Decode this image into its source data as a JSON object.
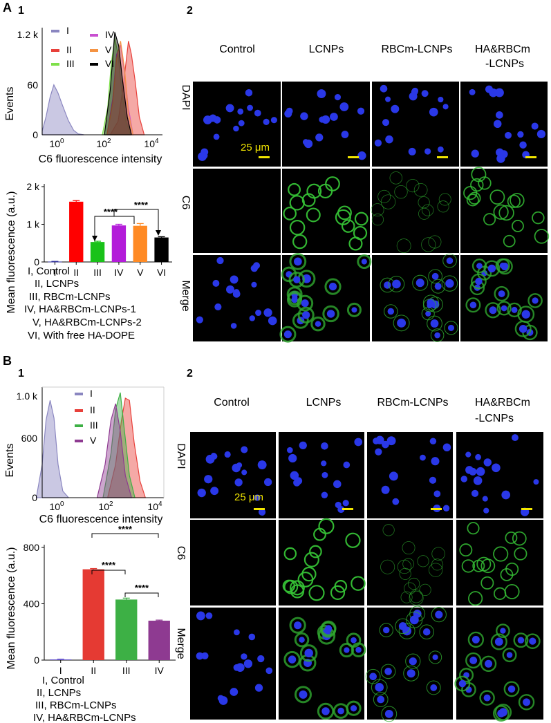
{
  "panel_A": {
    "label": "A",
    "sub1": "1",
    "sub2": "2",
    "histogram": {
      "ylabel": "Events",
      "xlabel": "C6 fluorescence intensity",
      "yticks": [
        "0",
        "60",
        "1.2 k"
      ],
      "xticks": [
        {
          "base": "10",
          "exp": "0"
        },
        {
          "base": "10",
          "exp": "2"
        },
        {
          "base": "10",
          "exp": "4"
        }
      ],
      "legend": [
        {
          "label": "I",
          "color": "#8a86c0"
        },
        {
          "label": "II",
          "color": "#e8403a"
        },
        {
          "label": "III",
          "color": "#7ee04a"
        },
        {
          "label": "IV",
          "color": "#c84fd0"
        },
        {
          "label": "V",
          "color": "#f59342"
        },
        {
          "label": "VI",
          "color": "#000000"
        }
      ]
    },
    "bar_legend": [
      "I, Control",
      "II, LCNPs",
      "III, RBCm-LCNPs",
      "IV, HA&RBCm-LCNPs-1",
      "V, HA&RBCm-LCNPs-2",
      "VI, With free HA-DOPE"
    ],
    "significance": [
      "****",
      "****"
    ],
    "micro": {
      "columns": [
        "Control",
        "LCNPs",
        "RBCm-LCNPs",
        "HA&RBCm",
        "-LCNPs"
      ],
      "rows": [
        "DAPI",
        "C6",
        "Merge"
      ],
      "scale_bar": "25 μm"
    }
  },
  "panel_B": {
    "label": "B",
    "sub1": "1",
    "sub2": "2",
    "histogram": {
      "ylabel": "Events",
      "xlabel": "C6 fluorescence intensity",
      "yticks": [
        "0",
        "600",
        "1.0 k"
      ],
      "xticks": [
        {
          "base": "10",
          "exp": "0"
        },
        {
          "base": "10",
          "exp": "2"
        },
        {
          "base": "10",
          "exp": "4"
        }
      ],
      "legend": [
        {
          "label": "I",
          "color": "#8a86c0"
        },
        {
          "label": "II",
          "color": "#e8403a"
        },
        {
          "label": "III",
          "color": "#3db045"
        },
        {
          "label": "V",
          "color": "#8e3a91"
        }
      ]
    },
    "bar_legend": [
      "I, Control",
      "II, LCNPs",
      "III, RBCm-LCNPs",
      "IV, HA&RBCm-LCNPs"
    ],
    "significance": [
      "****",
      "****",
      "****"
    ],
    "micro": {
      "columns": [
        "Control",
        "LCNPs",
        "RBCm-LCNPs",
        "HA&RBCm",
        "-LCNPs"
      ],
      "rows": [
        "DAPI",
        "C6",
        "Merge"
      ],
      "scale_bar": "25 μm"
    }
  },
  "chart_data": [
    {
      "type": "area",
      "panel": "A1",
      "xscale": "log",
      "xlabel": "C6 fluorescence intensity",
      "ylabel": "Events",
      "xlim": [
        0.5,
        20000
      ],
      "ylim": [
        0,
        1200
      ],
      "series": [
        {
          "name": "I",
          "color": "#8a86c0",
          "x": [
            0.5,
            0.7,
            1,
            1.4,
            2,
            3,
            5,
            8,
            12,
            20
          ],
          "y": [
            40,
            200,
            420,
            560,
            470,
            330,
            160,
            50,
            10,
            0
          ]
        },
        {
          "name": "II",
          "color": "#e8403a",
          "x": [
            200,
            400,
            600,
            800,
            1000,
            1300,
            1800,
            2600,
            4000
          ],
          "y": [
            0,
            150,
            500,
            800,
            1050,
            900,
            600,
            200,
            0
          ]
        },
        {
          "name": "III",
          "color": "#7ee04a",
          "x": [
            100,
            160,
            220,
            300,
            400,
            550,
            800,
            1200
          ],
          "y": [
            0,
            300,
            800,
            1080,
            900,
            500,
            150,
            0
          ]
        },
        {
          "name": "IV",
          "color": "#c84fd0",
          "x": [
            150,
            250,
            350,
            500,
            700,
            1000,
            1500
          ],
          "y": [
            0,
            400,
            900,
            1000,
            700,
            300,
            0
          ]
        },
        {
          "name": "V",
          "color": "#f59342",
          "x": [
            150,
            250,
            350,
            500,
            700,
            1000,
            1500
          ],
          "y": [
            0,
            350,
            850,
            1050,
            750,
            250,
            0
          ]
        },
        {
          "name": "VI",
          "color": "#000000",
          "x": [
            120,
            200,
            300,
            420,
            600,
            900,
            1300
          ],
          "y": [
            0,
            500,
            1150,
            1000,
            600,
            200,
            0
          ]
        }
      ]
    },
    {
      "type": "bar",
      "panel": "A1",
      "ylabel": "Mean fluorescence (a.u.)",
      "categories": [
        "I",
        "II",
        "III",
        "IV",
        "V",
        "VI"
      ],
      "values": [
        10,
        1600,
        530,
        970,
        960,
        650
      ],
      "errors": [
        5,
        30,
        20,
        30,
        60,
        20
      ],
      "colors": [
        "#2e2e9a",
        "#ff0000",
        "#19c219",
        "#b31cd9",
        "#ff8a24",
        "#000000"
      ],
      "ylim": [
        0,
        2000
      ],
      "yticks": [
        "0",
        "1 k",
        "2 k"
      ]
    },
    {
      "type": "area",
      "panel": "B1",
      "xscale": "log",
      "xlabel": "C6 fluorescence intensity",
      "ylabel": "Events",
      "xlim": [
        0.5,
        20000
      ],
      "ylim": [
        0,
        1000
      ],
      "series": [
        {
          "name": "I",
          "color": "#8a86c0",
          "x": [
            0.3,
            0.5,
            0.7,
            1,
            1.4,
            2,
            3,
            5
          ],
          "y": [
            0,
            300,
            700,
            880,
            720,
            300,
            60,
            0
          ]
        },
        {
          "name": "II",
          "color": "#e8403a",
          "x": [
            150,
            300,
            500,
            700,
            1000,
            1500,
            2500,
            4000
          ],
          "y": [
            0,
            300,
            700,
            900,
            880,
            500,
            150,
            0
          ]
        },
        {
          "name": "III",
          "color": "#3db045",
          "x": [
            100,
            200,
            300,
            450,
            650,
            1000,
            1600
          ],
          "y": [
            0,
            400,
            800,
            950,
            600,
            200,
            0
          ]
        },
        {
          "name": "V",
          "color": "#8e3a91",
          "x": [
            60,
            120,
            200,
            300,
            450,
            700,
            1200
          ],
          "y": [
            0,
            300,
            700,
            850,
            600,
            200,
            0
          ]
        }
      ]
    },
    {
      "type": "bar",
      "panel": "B1",
      "ylabel": "Mean fluorescence (a.u.)",
      "categories": [
        "I",
        "II",
        "III",
        "IV"
      ],
      "values": [
        5,
        645,
        430,
        280
      ],
      "errors": [
        2,
        5,
        10,
        4
      ],
      "colors": [
        "#6a5acd",
        "#e53a33",
        "#3db045",
        "#8e3a91"
      ],
      "ylim": [
        0,
        800
      ],
      "yticks": [
        "0",
        "400",
        "800"
      ]
    }
  ]
}
